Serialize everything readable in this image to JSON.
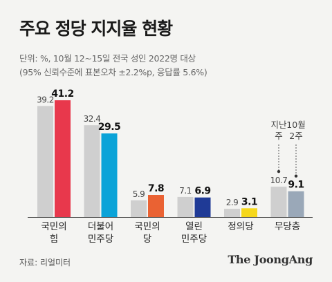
{
  "title": "주요 정당 지지율 현황",
  "subtitle_line1": "단위: %, 10월 12~15일 전국 성인 2022명 대상",
  "subtitle_line2": "(95% 신뢰수준에 표본오차 ±2.2%p, 응답률 5.6%)",
  "source": "자료: 리얼미터",
  "brand": "The JoongAng",
  "colors": {
    "previous": "#cfcfcf",
    "국민의힘": "#e8384c",
    "더불어민주당": "#0aa3d8",
    "국민의당": "#ea6233",
    "열린민주당": "#1f3a96",
    "정의당": "#f5d71b",
    "무당층": "#9aa8b8"
  },
  "chart_data": {
    "type": "bar",
    "categories": [
      {
        "lines": [
          "국민의",
          "힘"
        ]
      },
      {
        "lines": [
          "더불어",
          "민주당"
        ]
      },
      {
        "lines": [
          "국민의",
          "당"
        ]
      },
      {
        "lines": [
          "열린",
          "민주당"
        ]
      },
      {
        "lines": [
          "정의당"
        ]
      },
      {
        "lines": [
          "무당층"
        ]
      }
    ],
    "series": [
      {
        "values": [
          39.2,
          32.4,
          5.9,
          7.1,
          2.9,
          10.7
        ]
      },
      {
        "values": [
          41.2,
          29.5,
          7.8,
          6.9,
          3.1,
          9.1
        ]
      }
    ],
    "annotations": [
      {
        "category_index": 5,
        "series_index": 0,
        "lines": [
          "지난",
          "주"
        ]
      },
      {
        "category_index": 5,
        "series_index": 1,
        "lines": [
          "10월",
          "2주"
        ]
      }
    ],
    "ylim": [
      0,
      45
    ],
    "grid": false,
    "legend": "none"
  }
}
